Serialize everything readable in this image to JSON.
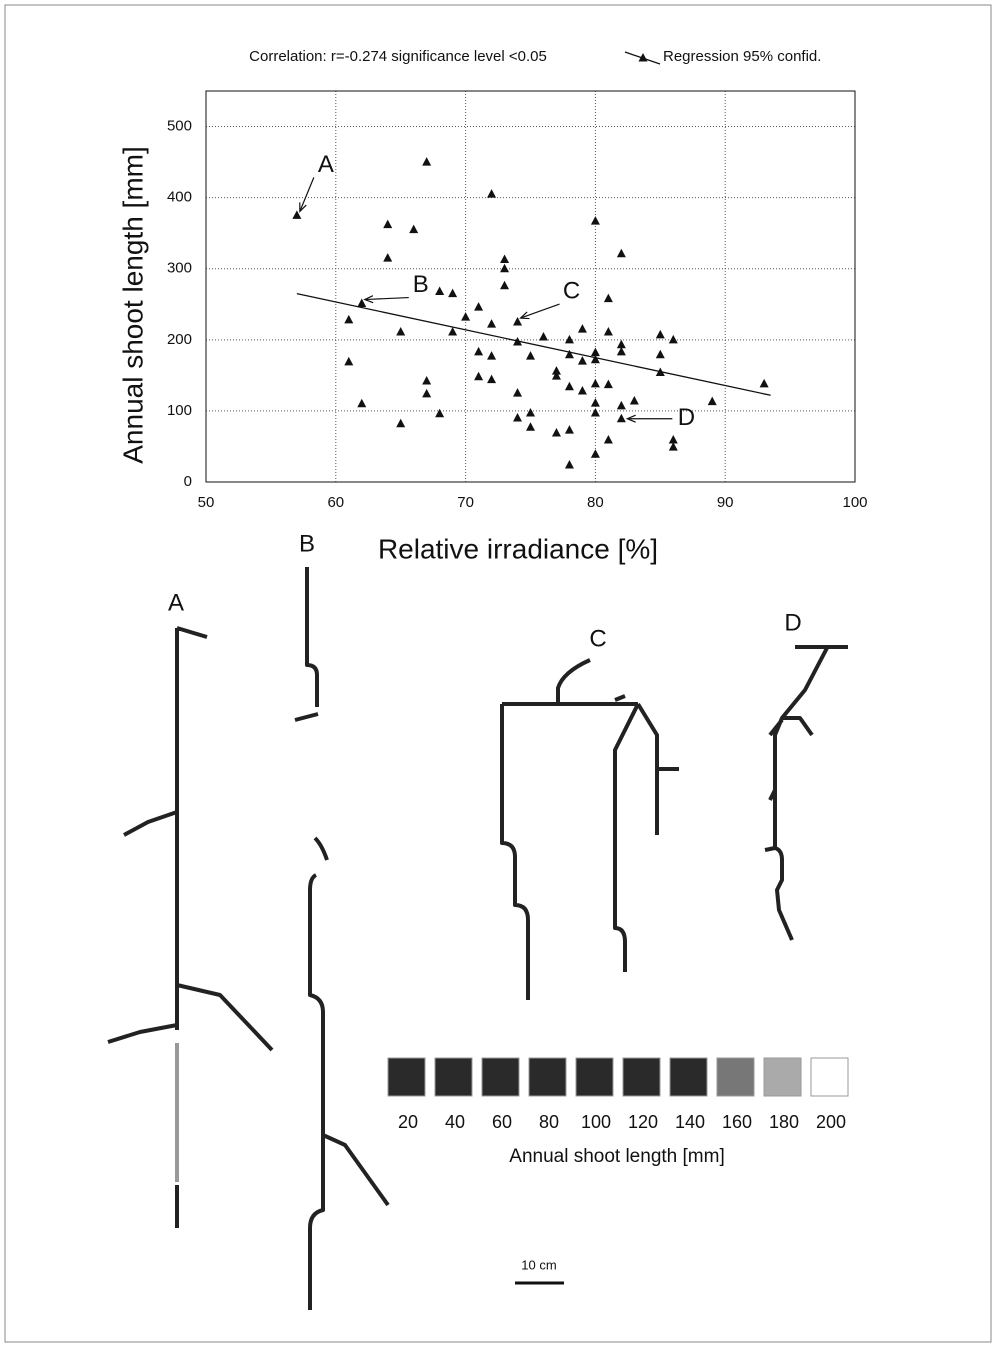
{
  "chart_data": {
    "type": "scatter",
    "subtitle": "Correlation: r=-0.274  significance level <0.05",
    "x_label": "Relative irradiance [%]",
    "y_label": "Annual shoot length [mm]",
    "xlim": [
      50,
      100
    ],
    "xticks": [
      50,
      60,
      70,
      80,
      90,
      100
    ],
    "ylim": [
      0,
      550
    ],
    "yticks": [
      0,
      100,
      200,
      300,
      400,
      500
    ],
    "grid": true,
    "series": [
      {
        "color": "#111111",
        "x": [
          57,
          67,
          72,
          80,
          64,
          66,
          64,
          82,
          73,
          73,
          73,
          68,
          69,
          81,
          62,
          71,
          70,
          61,
          72,
          74,
          65,
          69,
          79,
          81,
          76,
          85,
          74,
          78,
          86,
          82,
          82,
          71,
          72,
          75,
          80,
          78,
          85,
          61,
          79,
          80,
          77,
          77,
          85,
          71,
          72,
          67,
          81,
          78,
          80,
          93,
          67,
          74,
          79,
          80,
          83,
          82,
          89,
          62,
          68,
          75,
          74,
          80,
          82,
          65,
          75,
          78,
          77,
          81,
          86,
          86,
          80,
          78
        ],
        "values": [
          375,
          450,
          405,
          367,
          362,
          355,
          315,
          321,
          313,
          300,
          276,
          268,
          265,
          258,
          251,
          246,
          232,
          228,
          222,
          225,
          211,
          211,
          215,
          211,
          204,
          207,
          197,
          200,
          200,
          193,
          183,
          183,
          177,
          177,
          182,
          179,
          179,
          169,
          170,
          172,
          156,
          149,
          154,
          148,
          144,
          142,
          137,
          134,
          138,
          138,
          124,
          125,
          128,
          111,
          114,
          107,
          113,
          110,
          96,
          97,
          90,
          97,
          89,
          82,
          77,
          73,
          69,
          59,
          59,
          49,
          39,
          24
        ]
      }
    ],
    "regression": {
      "name": "Regression 95% confid.",
      "color": "#111111",
      "x": [
        57,
        93.5
      ],
      "values": [
        265,
        122
      ]
    },
    "annotations": [
      {
        "text": "A",
        "x": 57,
        "y": 375
      },
      {
        "text": "B",
        "x": 62,
        "y": 251
      },
      {
        "text": "C",
        "x": 74,
        "y": 225
      },
      {
        "text": "D",
        "x": 82,
        "y": 89
      }
    ]
  },
  "shoot_legend": {
    "title": "Annual shoot length [mm]",
    "values": [
      20,
      40,
      60,
      80,
      100,
      120,
      140,
      160,
      180,
      200
    ],
    "colors": [
      "#2a2a2a",
      "#2a2a2a",
      "#2a2a2a",
      "#2a2a2a",
      "#2a2a2a",
      "#2a2a2a",
      "#2a2a2a",
      "#777777",
      "#aaaaaa",
      "#ffffff"
    ]
  },
  "scale_bar": "10 cm"
}
